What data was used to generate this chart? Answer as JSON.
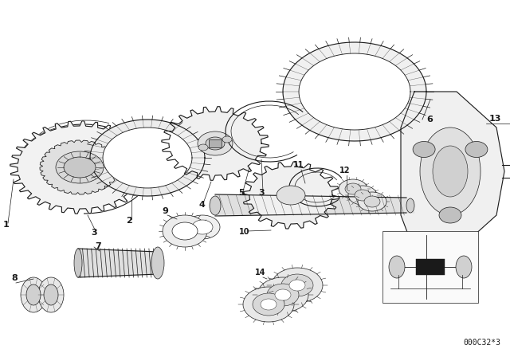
{
  "bg_color": "#ffffff",
  "line_color": "#1a1a1a",
  "diagram_code": "000C32*3",
  "fig_w": 6.4,
  "fig_h": 4.48,
  "dpi": 100
}
